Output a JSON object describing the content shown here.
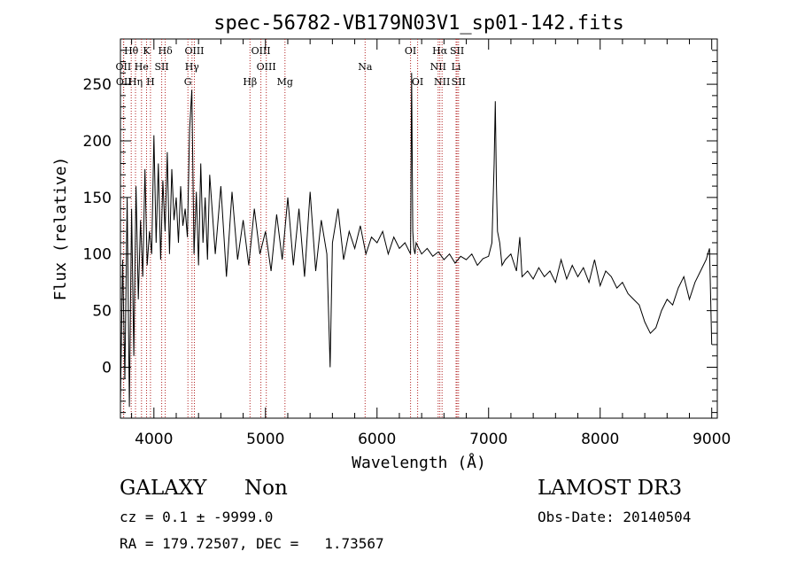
{
  "chart_data": {
    "type": "line",
    "title": "spec-56782-VB179N03V1_sp01-142.fits",
    "xlabel": "Wavelength (Å)",
    "ylabel": "Flux (relative)",
    "xlim": [
      3700,
      9050
    ],
    "ylim": [
      -45,
      290
    ],
    "x_ticks": [
      4000,
      5000,
      6000,
      7000,
      8000,
      9000
    ],
    "y_ticks": [
      0,
      50,
      100,
      150,
      200,
      250
    ],
    "x_tick_labels": [
      "4000",
      "5000",
      "6000",
      "7000",
      "8000",
      "9000"
    ],
    "y_tick_labels": [
      "0",
      "50",
      "100",
      "150",
      "200",
      "250"
    ],
    "grid": false,
    "line_color": "#000000",
    "marker_color": "#b22222",
    "series": [
      {
        "x": [
          3700,
          3720,
          3740,
          3760,
          3780,
          3800,
          3820,
          3840,
          3860,
          3880,
          3900,
          3920,
          3940,
          3960,
          3980,
          4000,
          4020,
          4040,
          4060,
          4080,
          4100,
          4120,
          4140,
          4160,
          4180,
          4200,
          4220,
          4240,
          4260,
          4280,
          4300,
          4320,
          4340,
          4360,
          4380,
          4400,
          4420,
          4440,
          4460,
          4480,
          4500,
          4550,
          4600,
          4650,
          4700,
          4750,
          4800,
          4850,
          4900,
          4950,
          5000,
          5050,
          5100,
          5150,
          5200,
          5250,
          5300,
          5350,
          5400,
          5450,
          5500,
          5550,
          5580,
          5600,
          5650,
          5700,
          5750,
          5800,
          5850,
          5900,
          5950,
          6000,
          6050,
          6100,
          6150,
          6200,
          6250,
          6300,
          6310,
          6320,
          6330,
          6340,
          6350,
          6400,
          6450,
          6500,
          6550,
          6600,
          6650,
          6700,
          6750,
          6800,
          6850,
          6900,
          6950,
          7000,
          7030,
          7050,
          7060,
          7065,
          7070,
          7080,
          7100,
          7120,
          7150,
          7200,
          7250,
          7280,
          7300,
          7350,
          7400,
          7450,
          7500,
          7550,
          7600,
          7650,
          7700,
          7750,
          7800,
          7850,
          7900,
          7950,
          8000,
          8050,
          8100,
          8150,
          8200,
          8250,
          8300,
          8350,
          8400,
          8450,
          8500,
          8550,
          8600,
          8650,
          8700,
          8750,
          8800,
          8850,
          8900,
          8950,
          8980,
          9000
        ],
        "y": [
          -30,
          95,
          -10,
          150,
          -35,
          140,
          10,
          160,
          60,
          130,
          80,
          175,
          90,
          120,
          100,
          205,
          110,
          180,
          95,
          165,
          120,
          190,
          100,
          175,
          130,
          150,
          110,
          160,
          125,
          140,
          115,
          210,
          245,
          100,
          155,
          90,
          180,
          110,
          150,
          95,
          170,
          100,
          160,
          80,
          155,
          95,
          130,
          90,
          140,
          100,
          120,
          85,
          135,
          95,
          150,
          90,
          140,
          80,
          155,
          85,
          130,
          100,
          0,
          110,
          140,
          95,
          120,
          105,
          125,
          100,
          115,
          110,
          120,
          100,
          115,
          105,
          110,
          100,
          260,
          120,
          105,
          100,
          110,
          100,
          105,
          98,
          102,
          95,
          100,
          92,
          98,
          95,
          100,
          90,
          96,
          98,
          110,
          180,
          235,
          200,
          160,
          120,
          110,
          90,
          95,
          100,
          85,
          115,
          80,
          85,
          78,
          88,
          80,
          85,
          75,
          95,
          78,
          90,
          80,
          88,
          75,
          95,
          72,
          85,
          80,
          70,
          75,
          65,
          60,
          55,
          40,
          30,
          35,
          50,
          60,
          55,
          70,
          80,
          60,
          75,
          85,
          95,
          105,
          20
        ]
      }
    ],
    "line_markers": [
      {
        "name": "Hθ",
        "x": 3797,
        "row": 0
      },
      {
        "name": "OII",
        "x": 3727,
        "row": 1
      },
      {
        "name": "OII",
        "x": 3729,
        "row": 2
      },
      {
        "name": "He",
        "x": 3889,
        "row": 1
      },
      {
        "name": "Hη",
        "x": 3835,
        "row": 2
      },
      {
        "name": "K",
        "x": 3934,
        "row": 0
      },
      {
        "name": "H",
        "x": 3969,
        "row": 2
      },
      {
        "name": "Hδ",
        "x": 4102,
        "row": 0
      },
      {
        "name": "SII",
        "x": 4070,
        "row": 1
      },
      {
        "name": "OIII",
        "x": 4363,
        "row": 0
      },
      {
        "name": "Hγ",
        "x": 4341,
        "row": 1
      },
      {
        "name": "G",
        "x": 4305,
        "row": 2
      },
      {
        "name": "Hβ",
        "x": 4861,
        "row": 2
      },
      {
        "name": "OIII",
        "x": 4959,
        "row": 0
      },
      {
        "name": "OIII",
        "x": 5007,
        "row": 1
      },
      {
        "name": "Mg",
        "x": 5175,
        "row": 2
      },
      {
        "name": "Na",
        "x": 5893,
        "row": 1
      },
      {
        "name": "OI",
        "x": 6300,
        "row": 0
      },
      {
        "name": "OI",
        "x": 6364,
        "row": 2
      },
      {
        "name": "Hα",
        "x": 6563,
        "row": 0
      },
      {
        "name": "NII",
        "x": 6548,
        "row": 1
      },
      {
        "name": "NII",
        "x": 6583,
        "row": 2
      },
      {
        "name": "SII",
        "x": 6717,
        "row": 0
      },
      {
        "name": "Li",
        "x": 6708,
        "row": 1
      },
      {
        "name": "SII",
        "x": 6731,
        "row": 2
      }
    ]
  },
  "info": {
    "object_class": "GALAXY",
    "subclass": "Non",
    "survey": "LAMOST DR3",
    "cz_line": "cz = 0.1 ± -9999.0",
    "obs_date_line": "Obs-Date: 20140504",
    "radec_line": "RA = 179.72507, DEC =   1.73567"
  }
}
